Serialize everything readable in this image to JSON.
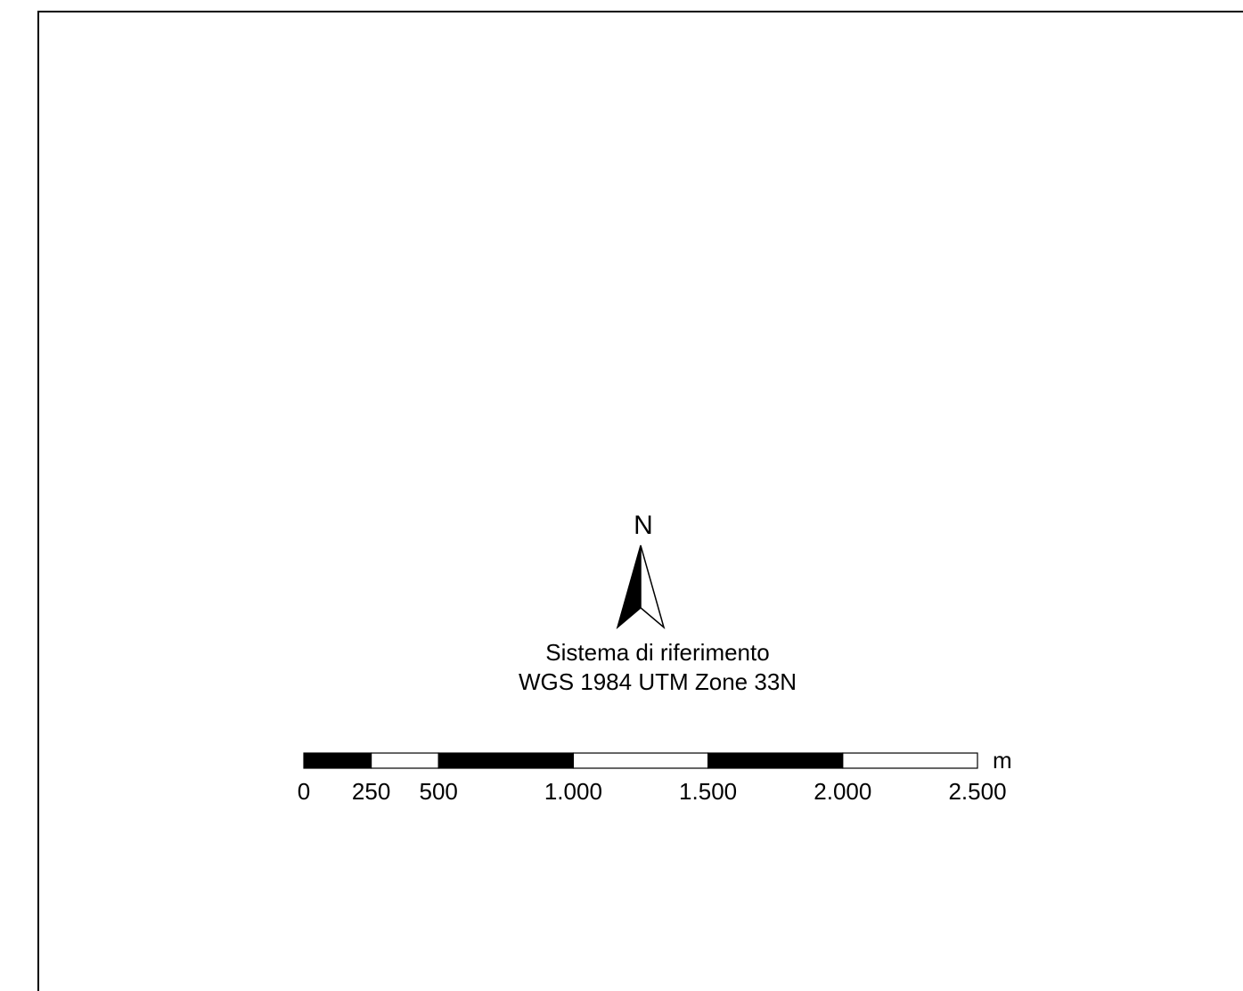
{
  "north_arrow": {
    "label": "N",
    "icon": "north-arrow-icon"
  },
  "reference_system": {
    "line1": "Sistema di riferimento",
    "line2": "WGS 1984 UTM Zone 33N"
  },
  "scale_bar": {
    "unit": "m",
    "ticks": [
      "0",
      "250",
      "500",
      "1.000",
      "1.500",
      "2.000",
      "2.500"
    ],
    "segment_breaks_m": [
      0,
      250,
      500,
      1000,
      1500,
      2000,
      2500
    ],
    "fills": [
      "black",
      "white",
      "black",
      "white",
      "black",
      "white"
    ]
  }
}
